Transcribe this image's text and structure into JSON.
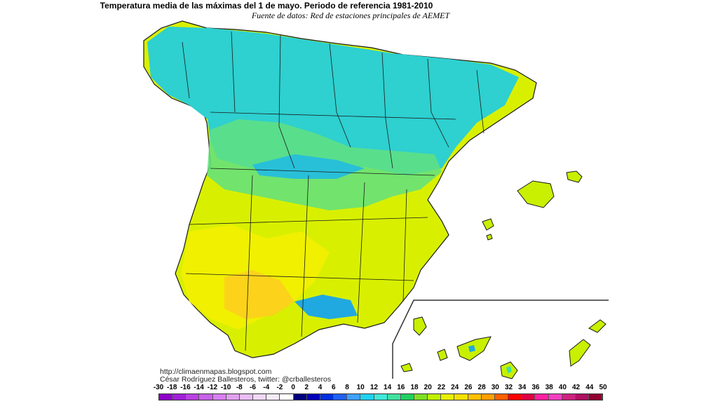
{
  "title": "Temperatura media de las máximas del 1 de mayo. Periodo de referencia 1981-2010",
  "subtitle": "Fuente de datos: Red de estaciones principales de AEMET",
  "credits": {
    "url": "http://climaenmapas.blogspot.com",
    "author": "César Rodríguez Ballesteros, twitter: @crballesteros"
  },
  "legend": {
    "ticks": [
      "-30",
      "-18",
      "-16",
      "-14",
      "-12",
      "-10",
      "-8",
      "-6",
      "-4",
      "-2",
      "0",
      "2",
      "4",
      "6",
      "8",
      "10",
      "12",
      "14",
      "16",
      "18",
      "20",
      "22",
      "24",
      "26",
      "28",
      "30",
      "32",
      "34",
      "36",
      "38",
      "40",
      "42",
      "44",
      "50"
    ],
    "colors": [
      "#8e00c8",
      "#a020d8",
      "#b840e0",
      "#c860e8",
      "#d880f0",
      "#e0a0f0",
      "#e8bef4",
      "#efd8f7",
      "#f4ecf9",
      "#ffffff",
      "#000080",
      "#0000b8",
      "#0030e0",
      "#2060f0",
      "#40a0f8",
      "#20d0f0",
      "#40e8d8",
      "#40e0a0",
      "#20d060",
      "#80e020",
      "#c0f000",
      "#e8f000",
      "#f8e000",
      "#ffc000",
      "#ffa000",
      "#ff6000",
      "#ff0000",
      "#e00040",
      "#ff20a0",
      "#f040c0",
      "#d02080",
      "#b01060",
      "#900030"
    ]
  },
  "map": {
    "regions": [
      "peninsula",
      "baleares",
      "canarias"
    ],
    "palette": {
      "cold": "#2ed0d0",
      "cool": "#40e0a0",
      "mild": "#80e040",
      "warm": "#c8f000",
      "hot": "#ffc000",
      "boundary": "#1a1a1a"
    }
  }
}
